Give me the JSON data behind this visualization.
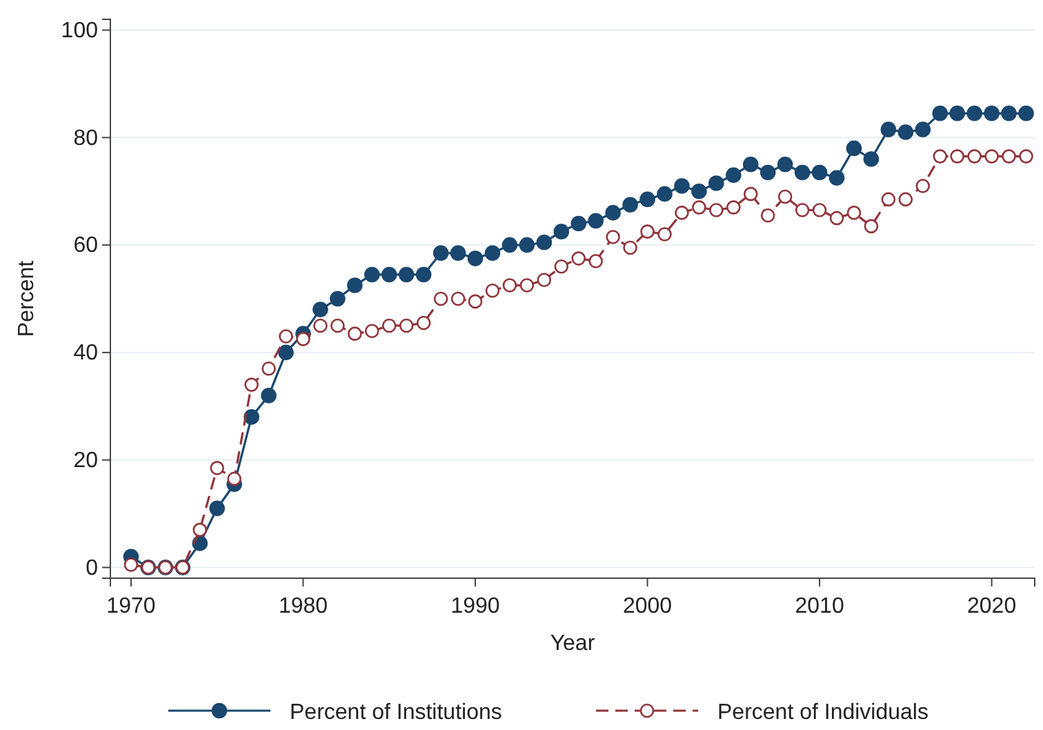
{
  "chart_data": {
    "type": "line",
    "xlabel": "Year",
    "ylabel": "Percent",
    "x": [
      1970,
      1971,
      1972,
      1973,
      1974,
      1975,
      1976,
      1977,
      1978,
      1979,
      1980,
      1981,
      1982,
      1983,
      1984,
      1985,
      1986,
      1987,
      1988,
      1989,
      1990,
      1991,
      1992,
      1993,
      1994,
      1995,
      1996,
      1997,
      1998,
      1999,
      2000,
      2001,
      2002,
      2003,
      2004,
      2005,
      2006,
      2007,
      2008,
      2009,
      2010,
      2011,
      2012,
      2013,
      2014,
      2015,
      2016,
      2017,
      2018,
      2019,
      2020,
      2021,
      2022
    ],
    "series": [
      {
        "name": "Percent of Institutions",
        "color": "#1a476f",
        "marker": "circle",
        "line_style": "solid",
        "values": [
          2,
          0,
          0,
          0,
          4.5,
          11,
          15.5,
          28,
          32,
          40,
          43.5,
          48,
          50,
          52.5,
          54.5,
          54.5,
          54.5,
          54.5,
          58.5,
          58.5,
          57.5,
          58.5,
          60,
          60,
          60.5,
          62.5,
          64,
          64.5,
          66,
          67.5,
          68.5,
          69.5,
          71,
          70,
          71.5,
          73,
          75,
          73.5,
          75,
          73.5,
          73.5,
          72.5,
          78,
          76,
          81.5,
          81,
          81.5,
          84.5,
          84.5,
          84.5,
          84.5,
          84.5,
          84.5
        ]
      },
      {
        "name": "Percent of Individuals",
        "color": "#90353b",
        "marker": "circle",
        "line_style": "dashed",
        "values": [
          0.5,
          0,
          0,
          0,
          7,
          18.5,
          16.5,
          34,
          37,
          43,
          42.5,
          45,
          45,
          43.5,
          44,
          45,
          45,
          45.5,
          50,
          50,
          49.5,
          51.5,
          52.5,
          52.5,
          53.5,
          56,
          57.5,
          57,
          61.5,
          59.5,
          62.5,
          62,
          66,
          67,
          66.5,
          67,
          69.5,
          65.5,
          69,
          66.5,
          66.5,
          65,
          66,
          63.5,
          68.5,
          68.5,
          71,
          76.5,
          76.5,
          76.5,
          76.5,
          76.5,
          76.5
        ]
      }
    ],
    "xlim": [
      1968.8,
      2022.5
    ],
    "xticks": [
      1970,
      1980,
      1990,
      2000,
      2010,
      2020
    ],
    "ylim": [
      -2,
      102
    ],
    "yticks": [
      0,
      20,
      40,
      60,
      80,
      100
    ],
    "grid": "y",
    "legend": "bottom"
  }
}
